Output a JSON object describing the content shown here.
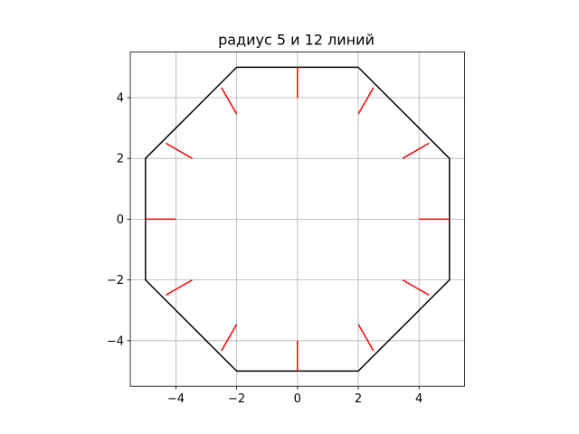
{
  "chart_data": {
    "type": "line",
    "title": "радиус 5 и 12 линий",
    "xlabel": "",
    "ylabel": "",
    "xlim": [
      -5.5,
      5.5
    ],
    "ylim": [
      -5.5,
      5.5
    ],
    "grid": true,
    "x_ticks": [
      -4,
      -2,
      0,
      2,
      4
    ],
    "y_ticks": [
      -4,
      -2,
      0,
      2,
      4
    ],
    "x_tick_labels": [
      "−4",
      "−2",
      "0",
      "2",
      "4"
    ],
    "y_tick_labels": [
      "−4",
      "−2",
      "0",
      "2",
      "4"
    ],
    "series": [
      {
        "kind": "polyline",
        "color": "#000000",
        "points": [
          [
            2,
            5
          ],
          [
            5,
            2
          ],
          [
            5,
            -2
          ],
          [
            2,
            -5
          ],
          [
            -2,
            -5
          ],
          [
            -5,
            -2
          ],
          [
            -5,
            2
          ],
          [
            -2,
            5
          ],
          [
            2,
            5
          ]
        ]
      },
      {
        "kind": "segments",
        "color": "#ff0000",
        "segments": [
          [
            [
              0,
              5
            ],
            [
              0,
              4
            ]
          ],
          [
            [
              2.5,
              4.33
            ],
            [
              2.0,
              3.46
            ]
          ],
          [
            [
              4.33,
              2.5
            ],
            [
              3.46,
              2.0
            ]
          ],
          [
            [
              5,
              0
            ],
            [
              4,
              0
            ]
          ],
          [
            [
              4.33,
              -2.5
            ],
            [
              3.46,
              -2.0
            ]
          ],
          [
            [
              2.5,
              -4.33
            ],
            [
              2.0,
              -3.46
            ]
          ],
          [
            [
              0,
              -5
            ],
            [
              0,
              -4
            ]
          ],
          [
            [
              -2.5,
              -4.33
            ],
            [
              -2.0,
              -3.46
            ]
          ],
          [
            [
              -4.33,
              -2.5
            ],
            [
              -3.46,
              -2.0
            ]
          ],
          [
            [
              -5,
              0
            ],
            [
              -4,
              0
            ]
          ],
          [
            [
              -4.33,
              2.5
            ],
            [
              -3.46,
              2.0
            ]
          ],
          [
            [
              -2.5,
              4.33
            ],
            [
              -2.0,
              3.46
            ]
          ]
        ]
      }
    ]
  }
}
